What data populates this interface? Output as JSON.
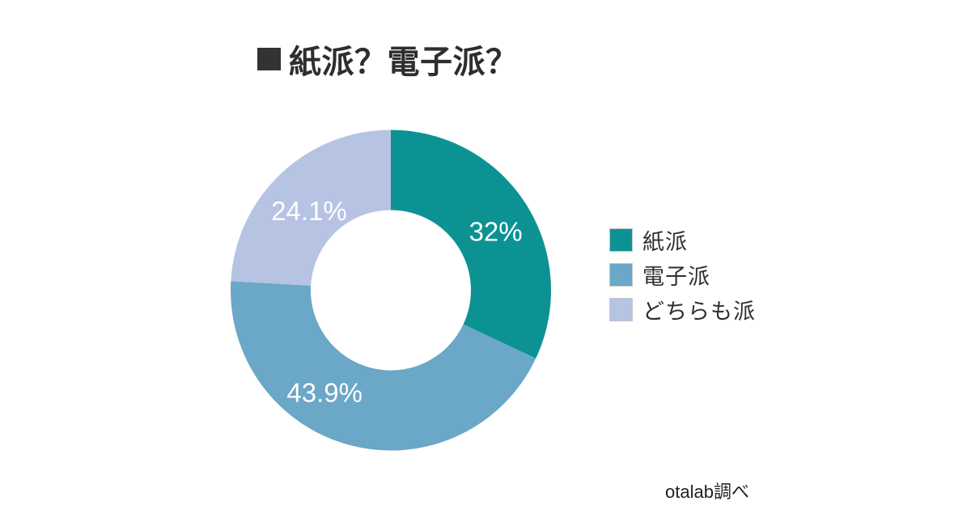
{
  "title": {
    "marker": "■",
    "text": "紙派？電子派？"
  },
  "chart_data": {
    "type": "pie",
    "subtype": "donut",
    "title": "紙派？電子派？",
    "categories": [
      "紙派",
      "電子派",
      "どちらも派"
    ],
    "values": [
      32,
      43.9,
      24.1
    ],
    "value_labels": [
      "32%",
      "43.9%",
      "24.1%"
    ],
    "colors": [
      "#0d9294",
      "#6ba7c6",
      "#b6c3e3"
    ],
    "unit": "%",
    "start_angle_deg": 0,
    "direction": "clockwise",
    "inner_radius_ratio": 0.5,
    "label_color": "#ffffff",
    "legend_position": "right",
    "source": "otalab調べ"
  },
  "legend": {
    "items": [
      {
        "label": "紙派",
        "color": "#0d9294"
      },
      {
        "label": "電子派",
        "color": "#6ba7c6"
      },
      {
        "label": "どちらも派",
        "color": "#b6c3e3"
      }
    ]
  },
  "source": "otalab調べ"
}
